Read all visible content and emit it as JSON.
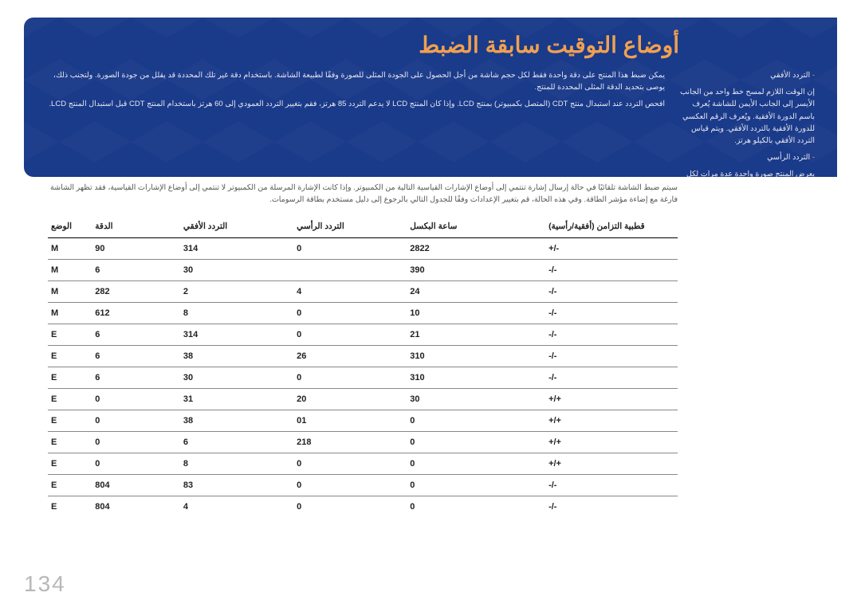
{
  "title": "أوضاع التوقيت سابقة الضبط",
  "side": {
    "h_label": "التردد الأفقي",
    "h_text": "إن الوقت اللازم لمسح خط واحد من الجانب الأيسر إلى الجانب الأيمن للشاشة يُعرف باسم الدورة الأفقية. ويُعرف الرقم العكسي للدورة الأفقية بالتردد الأفقي. ويتم قياس التردد الأفقي بالكيلو هرتز.",
    "v_label": "التردد الرأسي",
    "v_text": "يعرض المنتج صورة واحدة عدة مرات لكل ثانية (مثل إضاءة الفلورسنت) لعرض ما يراه المشاهد. ويُعرف معدل عرض الصورة الواحدة بشكل متكرر في الثانية الواحدة بالتردد الرأسي أو معدل التحديث. ويتم قياس التردد الرأسي بالهرتز."
  },
  "main": {
    "p1": "يمكن ضبط هذا المنتج على دقة واحدة فقط لكل حجم شاشة من أجل الحصول على الجودة المثلى للصورة وفقًا لطبيعة الشاشة. باستخدام دقة غير تلك المحددة قد يقلل من جودة الصورة. ولتجنب ذلك، يوصى بتحديد الدقة المثلى المحددة للمنتج.",
    "p2": "افحص التردد عند استبدال منتج CDT (المتصل بكمبيوتر) بمنتج LCD. وإذا كان المنتج LCD لا يدعم التردد 85 هرتز، فقم بتغيير التردد العمودي إلى 60 هرتز باستخدام المنتج CDT قبل استبدال المنتج LCD.",
    "p3": "سيتم ضبط الشاشة تلقائيًا في حالة إرسال إشارة تنتمي إلى أوضاع الإشارات القياسية التالية من الكمبيوتر. وإذا كانت الإشارة المرسلة من الكمبيوتر لا تنتمي إلى أوضاع الإشارات القياسية، فقد تظهر الشاشة فارغة مع إضاءة مؤشر الطاقة. وفي هذه الحالة، قم بتغيير الإعدادات وفقًا للجدول التالي بالرجوع إلى دليل مستخدم بطاقة الرسومات."
  },
  "columns": [
    "الوضع",
    "الدقة",
    "التردد الأفقي",
    "التردد الرأسي",
    "ساعة البكسل",
    "قطبية التزامن (أفقية/رأسية)"
  ],
  "rows": [
    [
      "M",
      "90",
      "314",
      "0",
      "2822",
      "+/-"
    ],
    [
      "M",
      "6",
      "30",
      "",
      "390",
      "-/-"
    ],
    [
      "M",
      "282",
      "2",
      "4",
      "24",
      "-/-"
    ],
    [
      "M",
      "612",
      "8",
      "0",
      "10",
      "-/-"
    ],
    [
      "E",
      "6",
      "314",
      "0",
      "21",
      "-/-"
    ],
    [
      "E",
      "6",
      "38",
      "26",
      "310",
      "-/-"
    ],
    [
      "E",
      "6",
      "30",
      "0",
      "310",
      "-/-"
    ],
    [
      "E",
      "0",
      "31",
      "20",
      "30",
      "+/+"
    ],
    [
      "E",
      "0",
      "38",
      "01",
      "0",
      "+/+"
    ],
    [
      "E",
      "0",
      "6",
      "218",
      "0",
      "+/+"
    ],
    [
      "E",
      "0",
      "8",
      "0",
      "0",
      "+/+"
    ],
    [
      "E",
      "804",
      "83",
      "0",
      "0",
      "-/-"
    ],
    [
      "E",
      "804",
      "4",
      "0",
      "0",
      "-/-"
    ]
  ],
  "page_number": "134"
}
